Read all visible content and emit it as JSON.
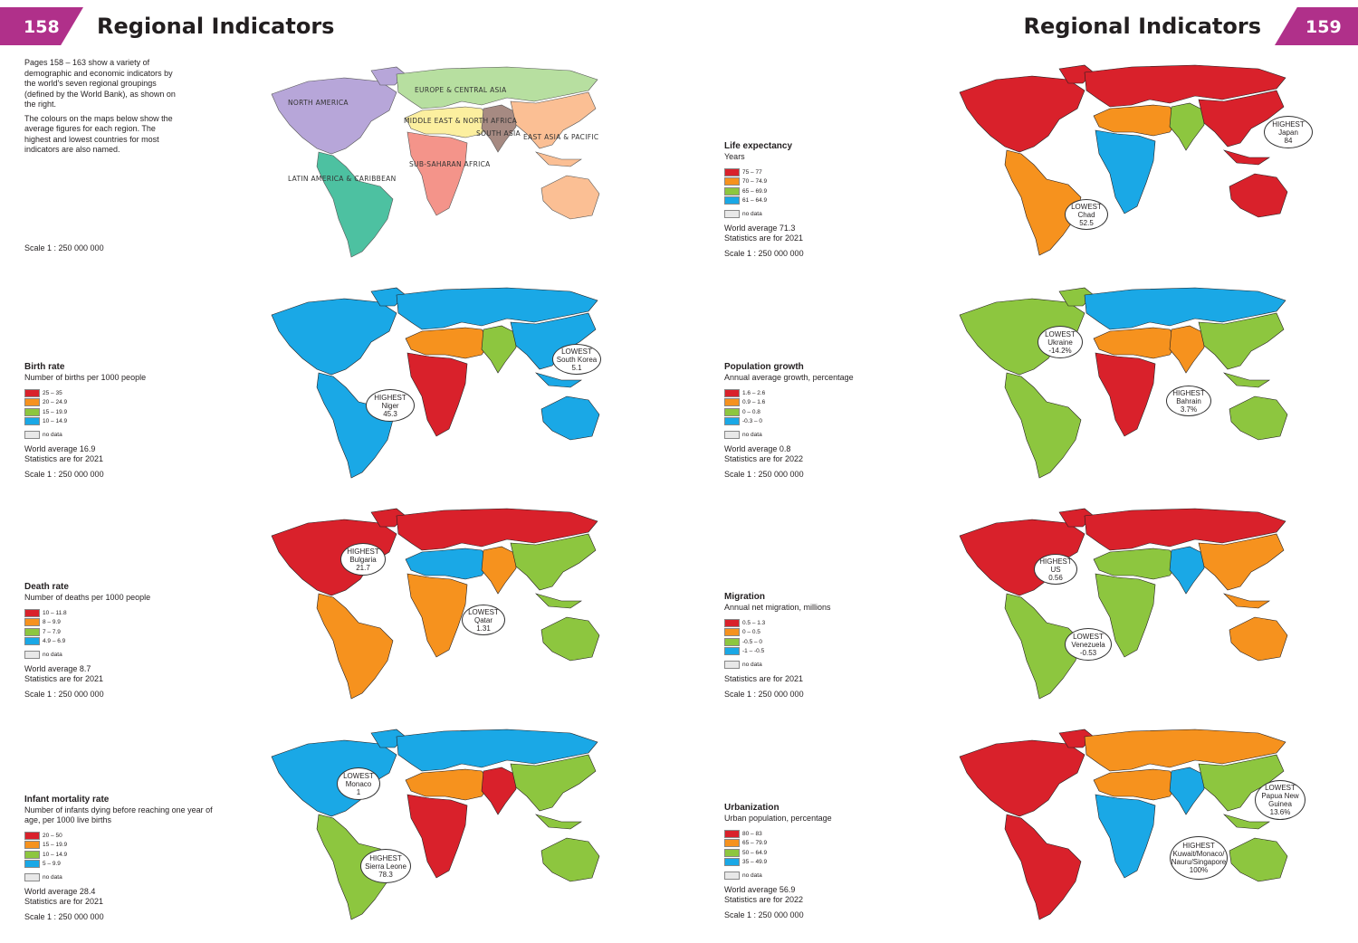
{
  "header": {
    "left_page_number": "158",
    "right_page_number": "159",
    "title_left": "Regional Indicators",
    "title_right": "Regional Indicators"
  },
  "intro": {
    "para1": "Pages 158 – 163 show a variety of demographic and economic indicators by the world's seven regional groupings (defined by the World Bank), as shown on the right.",
    "para2": "The colours on the maps below show the average figures for each region. The highest and lowest countries for most indicators are also named.",
    "scale": "Scale 1 : 250 000 000"
  },
  "colors": {
    "red": "#d9212b",
    "orange": "#f6921e",
    "green": "#8dc63f",
    "blue": "#1aa8e6",
    "nodata": "#e8e8e8",
    "border": "#231f20",
    "accent": "#b0308a"
  },
  "regions_map": {
    "labels": {
      "north_america": "NORTH AMERICA",
      "europe": "EUROPE & CENTRAL ASIA",
      "mena": "MIDDLE EAST & NORTH AFRICA",
      "south_asia": "SOUTH ASIA",
      "east_asia": "EAST ASIA & PACIFIC",
      "latam": "LATIN AMERICA & CARIBBEAN",
      "ssa": "SUB-SAHARAN AFRICA"
    },
    "colors": {
      "north_america": "#b7a6d9",
      "europe": "#b7dfa0",
      "mena": "#fcef9f",
      "south_asia": "#a68a82",
      "east_asia": "#fbbf94",
      "latam": "#4dc1a1",
      "ssa": "#f4948a"
    }
  },
  "indicators": {
    "life": {
      "title": "Life expectancy",
      "subtitle": "Years",
      "legend": [
        "75 – 77",
        "70 – 74.9",
        "65 – 69.9",
        "61 – 64.9"
      ],
      "nodata": "no data",
      "average": "World average 71.3",
      "stats": "Statistics are for 2021",
      "scale": "Scale 1 : 250 000 000",
      "region_colors": {
        "north_america": "red",
        "europe": "red",
        "mena": "orange",
        "south_asia": "green",
        "east_asia": "red",
        "latam": "orange",
        "ssa": "blue"
      },
      "callouts": [
        {
          "kind": "HIGHEST",
          "country": "Japan",
          "value": "84"
        },
        {
          "kind": "LOWEST",
          "country": "Chad",
          "value": "52.5"
        }
      ]
    },
    "birth": {
      "title": "Birth rate",
      "subtitle": "Number of births per 1000 people",
      "legend": [
        "25 – 35",
        "20 – 24.9",
        "15 – 19.9",
        "10 – 14.9"
      ],
      "nodata": "no data",
      "average": "World average 16.9",
      "stats": "Statistics are for 2021",
      "scale": "Scale 1 : 250 000 000",
      "region_colors": {
        "north_america": "blue",
        "europe": "blue",
        "mena": "orange",
        "south_asia": "green",
        "east_asia": "blue",
        "latam": "blue",
        "ssa": "red"
      },
      "callouts": [
        {
          "kind": "LOWEST",
          "country": "South Korea",
          "value": "5.1"
        },
        {
          "kind": "HIGHEST",
          "country": "Niger",
          "value": "45.3"
        }
      ]
    },
    "popgrowth": {
      "title": "Population growth",
      "subtitle": "Annual average growth, percentage",
      "legend": [
        "1.6 – 2.6",
        "0.9 – 1.6",
        "0 – 0.8",
        "-0.3 – 0"
      ],
      "nodata": "no data",
      "average": "World average 0.8",
      "stats": "Statistics are for 2022",
      "scale": "Scale 1 : 250 000 000",
      "region_colors": {
        "north_america": "green",
        "europe": "blue",
        "mena": "orange",
        "south_asia": "orange",
        "east_asia": "green",
        "latam": "green",
        "ssa": "red"
      },
      "callouts": [
        {
          "kind": "LOWEST",
          "country": "Ukraine",
          "value": "-14.2%"
        },
        {
          "kind": "HIGHEST",
          "country": "Bahrain",
          "value": "3.7%"
        }
      ]
    },
    "death": {
      "title": "Death rate",
      "subtitle": "Number of deaths per 1000 people",
      "legend": [
        "10 – 11.8",
        "8 – 9.9",
        "7 – 7.9",
        "4.9 – 6.9"
      ],
      "nodata": "no data",
      "average": "World average 8.7",
      "stats": "Statistics are for 2021",
      "scale": "Scale 1 : 250 000 000",
      "region_colors": {
        "north_america": "red",
        "europe": "red",
        "mena": "blue",
        "south_asia": "orange",
        "east_asia": "green",
        "latam": "orange",
        "ssa": "orange"
      },
      "callouts": [
        {
          "kind": "HIGHEST",
          "country": "Bulgaria",
          "value": "21.7"
        },
        {
          "kind": "LOWEST",
          "country": "Qatar",
          "value": "1.31"
        }
      ]
    },
    "migration": {
      "title": "Migration",
      "subtitle": "Annual net migration, millions",
      "legend": [
        "0.5 – 1.3",
        "0 – 0.5",
        "-0.5 – 0",
        "-1 – -0.5"
      ],
      "nodata": "no data",
      "stats": "Statistics are for 2021",
      "scale": "Scale 1 : 250 000 000",
      "region_colors": {
        "north_america": "red",
        "europe": "red",
        "mena": "green",
        "south_asia": "blue",
        "east_asia": "orange",
        "latam": "green",
        "ssa": "green"
      },
      "callouts": [
        {
          "kind": "HIGHEST",
          "country": "US",
          "value": "0.56"
        },
        {
          "kind": "LOWEST",
          "country": "Venezuela",
          "value": "-0.53"
        }
      ]
    },
    "infant": {
      "title": "Infant mortality rate",
      "subtitle": "Number of infants dying before reaching one year of age, per 1000 live births",
      "legend": [
        "20 – 50",
        "15 – 19.9",
        "10 – 14.9",
        "5 – 9.9"
      ],
      "nodata": "no data",
      "average": "World average 28.4",
      "stats": "Statistics are for 2021",
      "scale": "Scale 1 : 250 000 000",
      "region_colors": {
        "north_america": "blue",
        "europe": "blue",
        "mena": "orange",
        "south_asia": "red",
        "east_asia": "green",
        "latam": "green",
        "ssa": "red"
      },
      "callouts": [
        {
          "kind": "LOWEST",
          "country": "Monaco",
          "value": "1"
        },
        {
          "kind": "HIGHEST",
          "country": "Sierra Leone",
          "value": "78.3"
        }
      ]
    },
    "urban": {
      "title": "Urbanization",
      "subtitle": "Urban population, percentage",
      "legend": [
        "80 – 83",
        "65 – 79.9",
        "50 – 64.9",
        "35 – 49.9"
      ],
      "nodata": "no data",
      "average": "World average 56.9",
      "stats": "Statistics are for 2022",
      "scale": "Scale 1 : 250 000 000",
      "region_colors": {
        "north_america": "red",
        "europe": "orange",
        "mena": "orange",
        "south_asia": "blue",
        "east_asia": "green",
        "latam": "red",
        "ssa": "blue"
      },
      "callouts": [
        {
          "kind": "LOWEST",
          "country": "Papua New Guinea",
          "value": "13.6%"
        },
        {
          "kind": "HIGHEST",
          "country": "Kuwait/Monaco/ Nauru/Singapore",
          "value": "100%"
        }
      ]
    }
  }
}
